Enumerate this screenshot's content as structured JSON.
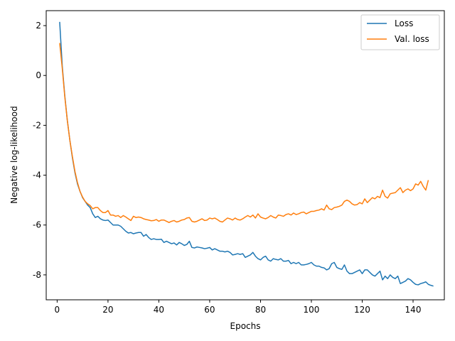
{
  "chart_data": {
    "type": "line",
    "title": "",
    "xlabel": "Epochs",
    "ylabel": "Negative log-likelihood",
    "xlim": [
      -4.3,
      152.3
    ],
    "ylim": [
      -9.0,
      2.6
    ],
    "xticks": [
      0,
      20,
      40,
      60,
      80,
      100,
      120,
      140
    ],
    "yticks": [
      -8,
      -6,
      -4,
      -2,
      0,
      2
    ],
    "grid": false,
    "legend_position": "top-right",
    "x_start": 1,
    "x_step": 1,
    "series": [
      {
        "name": "Loss",
        "color": "#1f77b4",
        "values": [
          2.15,
          0.4,
          -0.8,
          -1.8,
          -2.6,
          -3.3,
          -3.9,
          -4.35,
          -4.65,
          -4.9,
          -5.05,
          -5.2,
          -5.3,
          -5.55,
          -5.7,
          -5.65,
          -5.75,
          -5.8,
          -5.82,
          -5.8,
          -5.9,
          -6.0,
          -6.0,
          -6.0,
          -6.05,
          -6.15,
          -6.25,
          -6.32,
          -6.3,
          -6.35,
          -6.32,
          -6.3,
          -6.3,
          -6.45,
          -6.38,
          -6.5,
          -6.58,
          -6.55,
          -6.58,
          -6.58,
          -6.57,
          -6.7,
          -6.65,
          -6.7,
          -6.75,
          -6.72,
          -6.8,
          -6.7,
          -6.75,
          -6.82,
          -6.78,
          -6.65,
          -6.9,
          -6.92,
          -6.88,
          -6.9,
          -6.92,
          -6.95,
          -6.93,
          -6.9,
          -7.0,
          -6.95,
          -7.0,
          -7.05,
          -7.05,
          -7.08,
          -7.05,
          -7.1,
          -7.2,
          -7.18,
          -7.15,
          -7.18,
          -7.15,
          -7.3,
          -7.25,
          -7.2,
          -7.1,
          -7.25,
          -7.35,
          -7.4,
          -7.3,
          -7.25,
          -7.4,
          -7.45,
          -7.35,
          -7.38,
          -7.4,
          -7.35,
          -7.45,
          -7.45,
          -7.42,
          -7.55,
          -7.5,
          -7.55,
          -7.5,
          -7.6,
          -7.6,
          -7.58,
          -7.55,
          -7.5,
          -7.6,
          -7.65,
          -7.65,
          -7.7,
          -7.72,
          -7.8,
          -7.75,
          -7.55,
          -7.5,
          -7.7,
          -7.75,
          -7.78,
          -7.6,
          -7.85,
          -7.95,
          -7.95,
          -7.9,
          -7.85,
          -7.8,
          -7.95,
          -7.8,
          -7.8,
          -7.9,
          -8.0,
          -8.05,
          -7.95,
          -7.85,
          -8.2,
          -8.05,
          -8.15,
          -8.0,
          -8.1,
          -8.15,
          -8.05,
          -8.35,
          -8.3,
          -8.25,
          -8.15,
          -8.2,
          -8.3,
          -8.38,
          -8.4,
          -8.35,
          -8.32,
          -8.28,
          -8.38,
          -8.42,
          -8.45
        ]
      },
      {
        "name": "Val. loss",
        "color": "#ff7f0e",
        "values": [
          1.3,
          0.3,
          -0.85,
          -1.8,
          -2.6,
          -3.25,
          -3.85,
          -4.3,
          -4.65,
          -4.88,
          -5.05,
          -5.15,
          -5.22,
          -5.35,
          -5.3,
          -5.3,
          -5.42,
          -5.5,
          -5.5,
          -5.42,
          -5.6,
          -5.6,
          -5.65,
          -5.62,
          -5.7,
          -5.62,
          -5.68,
          -5.75,
          -5.82,
          -5.65,
          -5.7,
          -5.68,
          -5.7,
          -5.75,
          -5.78,
          -5.8,
          -5.83,
          -5.82,
          -5.78,
          -5.85,
          -5.8,
          -5.8,
          -5.85,
          -5.9,
          -5.85,
          -5.82,
          -5.88,
          -5.85,
          -5.8,
          -5.78,
          -5.72,
          -5.7,
          -5.85,
          -5.88,
          -5.85,
          -5.8,
          -5.75,
          -5.82,
          -5.8,
          -5.72,
          -5.75,
          -5.72,
          -5.78,
          -5.85,
          -5.88,
          -5.8,
          -5.72,
          -5.75,
          -5.8,
          -5.72,
          -5.78,
          -5.8,
          -5.75,
          -5.68,
          -5.62,
          -5.68,
          -5.6,
          -5.72,
          -5.55,
          -5.68,
          -5.72,
          -5.75,
          -5.7,
          -5.62,
          -5.68,
          -5.72,
          -5.6,
          -5.62,
          -5.65,
          -5.58,
          -5.55,
          -5.6,
          -5.52,
          -5.58,
          -5.55,
          -5.5,
          -5.48,
          -5.55,
          -5.5,
          -5.45,
          -5.45,
          -5.42,
          -5.4,
          -5.35,
          -5.4,
          -5.2,
          -5.35,
          -5.38,
          -5.3,
          -5.28,
          -5.25,
          -5.2,
          -5.05,
          -5.0,
          -5.05,
          -5.15,
          -5.2,
          -5.18,
          -5.1,
          -5.15,
          -4.95,
          -5.1,
          -5.0,
          -4.9,
          -4.95,
          -4.85,
          -4.9,
          -4.6,
          -4.85,
          -4.92,
          -4.75,
          -4.72,
          -4.7,
          -4.6,
          -4.5,
          -4.7,
          -4.6,
          -4.55,
          -4.62,
          -4.55,
          -4.35,
          -4.4,
          -4.25,
          -4.45,
          -4.6,
          -4.2
        ]
      }
    ]
  }
}
